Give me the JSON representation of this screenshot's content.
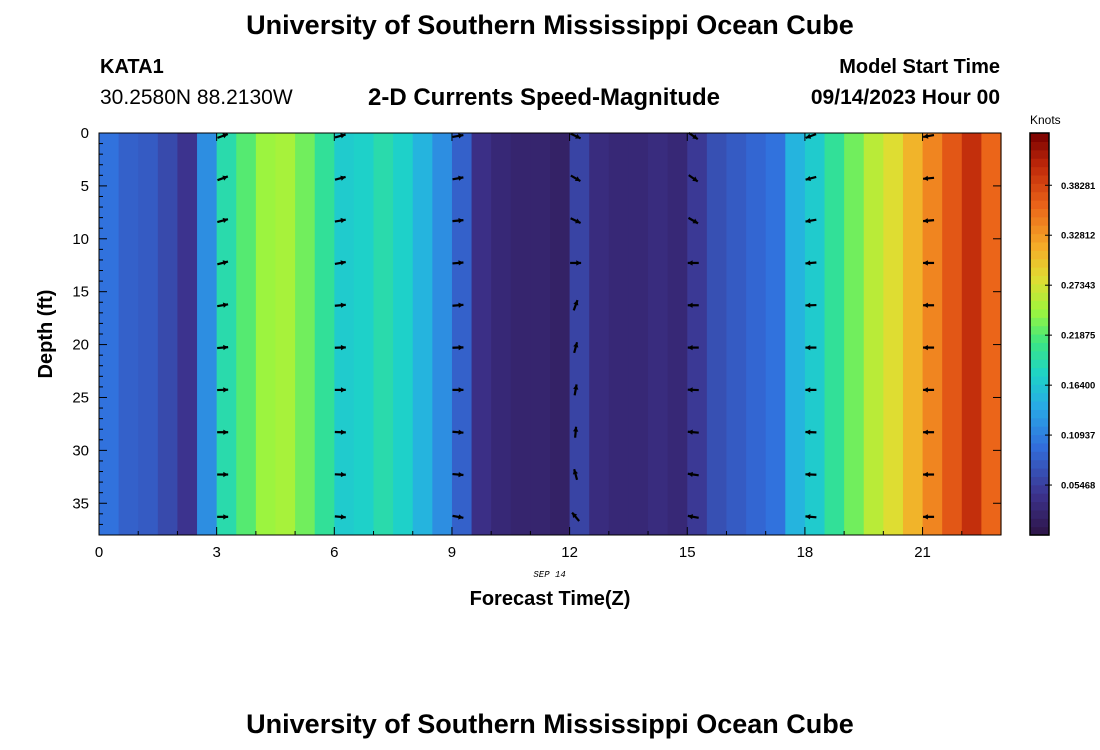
{
  "header": {
    "title": "University of Southern Mississippi Ocean Cube",
    "station_id": "KATA1",
    "station_coords": "30.2580N  88.2130W",
    "subtitle": "2-D Currents Speed-Magnitude",
    "start_label": "Model Start Time",
    "start_value": "09/14/2023 Hour 00",
    "bottom_title": "University of Southern Mississippi Ocean Cube"
  },
  "chart_data": {
    "type": "heatmap",
    "xlabel": "Forecast Time(Z)",
    "ylabel": "Depth (ft)",
    "date_label": "SEP 14",
    "xlim": [
      0,
      23
    ],
    "ylim": [
      38,
      0
    ],
    "x_ticks": [
      0,
      3,
      6,
      9,
      12,
      15,
      18,
      21
    ],
    "y_ticks": [
      0,
      5,
      10,
      15,
      20,
      25,
      30,
      35
    ],
    "legend": {
      "unit": "Knots",
      "placement": "right",
      "range": [
        0.0,
        0.44
      ],
      "tick_values": [
        0.05468,
        0.10937,
        0.164,
        0.21875,
        0.27343,
        0.32812,
        0.38281
      ],
      "tick_labels": [
        "0.05468",
        "0.10937",
        "0.16400",
        "0.21875",
        "0.27343",
        "0.32812",
        "0.38281"
      ]
    },
    "columns": [
      {
        "hour": 0,
        "speed": 0.1
      },
      {
        "hour": 0.5,
        "speed": 0.085
      },
      {
        "hour": 1,
        "speed": 0.08
      },
      {
        "hour": 1.5,
        "speed": 0.065
      },
      {
        "hour": 2,
        "speed": 0.045
      },
      {
        "hour": 2.5,
        "speed": 0.12
      },
      {
        "hour": 3,
        "speed": 0.19
      },
      {
        "hour": 3.5,
        "speed": 0.22
      },
      {
        "hour": 4,
        "speed": 0.245
      },
      {
        "hour": 4.5,
        "speed": 0.25
      },
      {
        "hour": 5,
        "speed": 0.23
      },
      {
        "hour": 5.5,
        "speed": 0.2
      },
      {
        "hour": 6,
        "speed": 0.17
      },
      {
        "hour": 6.5,
        "speed": 0.175
      },
      {
        "hour": 7,
        "speed": 0.19
      },
      {
        "hour": 7.5,
        "speed": 0.175
      },
      {
        "hour": 8,
        "speed": 0.15
      },
      {
        "hour": 8.5,
        "speed": 0.12
      },
      {
        "hour": 9,
        "speed": 0.085
      },
      {
        "hour": 9.5,
        "speed": 0.04
      },
      {
        "hour": 10,
        "speed": 0.03
      },
      {
        "hour": 10.5,
        "speed": 0.025
      },
      {
        "hour": 11,
        "speed": 0.025
      },
      {
        "hour": 11.5,
        "speed": 0.02
      },
      {
        "hour": 12,
        "speed": 0.06
      },
      {
        "hour": 12.5,
        "speed": 0.035
      },
      {
        "hour": 13,
        "speed": 0.03
      },
      {
        "hour": 13.5,
        "speed": 0.03
      },
      {
        "hour": 14,
        "speed": 0.035
      },
      {
        "hour": 14.5,
        "speed": 0.03
      },
      {
        "hour": 15,
        "speed": 0.05
      },
      {
        "hour": 15.5,
        "speed": 0.07
      },
      {
        "hour": 16,
        "speed": 0.08
      },
      {
        "hour": 16.5,
        "speed": 0.09
      },
      {
        "hour": 17,
        "speed": 0.1
      },
      {
        "hour": 17.5,
        "speed": 0.15
      },
      {
        "hour": 18,
        "speed": 0.17
      },
      {
        "hour": 18.5,
        "speed": 0.2
      },
      {
        "hour": 19,
        "speed": 0.23
      },
      {
        "hour": 19.5,
        "speed": 0.26
      },
      {
        "hour": 20,
        "speed": 0.28
      },
      {
        "hour": 20.5,
        "speed": 0.31
      },
      {
        "hour": 21,
        "speed": 0.34
      },
      {
        "hour": 21.5,
        "speed": 0.37
      },
      {
        "hour": 22,
        "speed": 0.4
      },
      {
        "hour": 22.5,
        "speed": 0.36
      }
    ],
    "vectors": {
      "hours": [
        3,
        6,
        9,
        12,
        15,
        18,
        21
      ],
      "depths": [
        0,
        4,
        8,
        12,
        16,
        20,
        24,
        28,
        32,
        36
      ],
      "directions": [
        [
          70,
          75,
          80,
          115,
          125,
          250,
          260
        ],
        [
          70,
          75,
          80,
          120,
          125,
          255,
          265
        ],
        [
          75,
          80,
          85,
          115,
          120,
          260,
          265
        ],
        [
          75,
          80,
          85,
          90,
          270,
          265,
          270
        ],
        [
          80,
          85,
          85,
          20,
          270,
          268,
          270
        ],
        [
          85,
          88,
          88,
          15,
          270,
          270,
          270
        ],
        [
          88,
          90,
          90,
          10,
          272,
          270,
          270
        ],
        [
          90,
          92,
          95,
          5,
          275,
          272,
          270
        ],
        [
          90,
          92,
          95,
          345,
          278,
          272,
          270
        ],
        [
          90,
          95,
          100,
          320,
          280,
          275,
          270
        ]
      ]
    }
  }
}
